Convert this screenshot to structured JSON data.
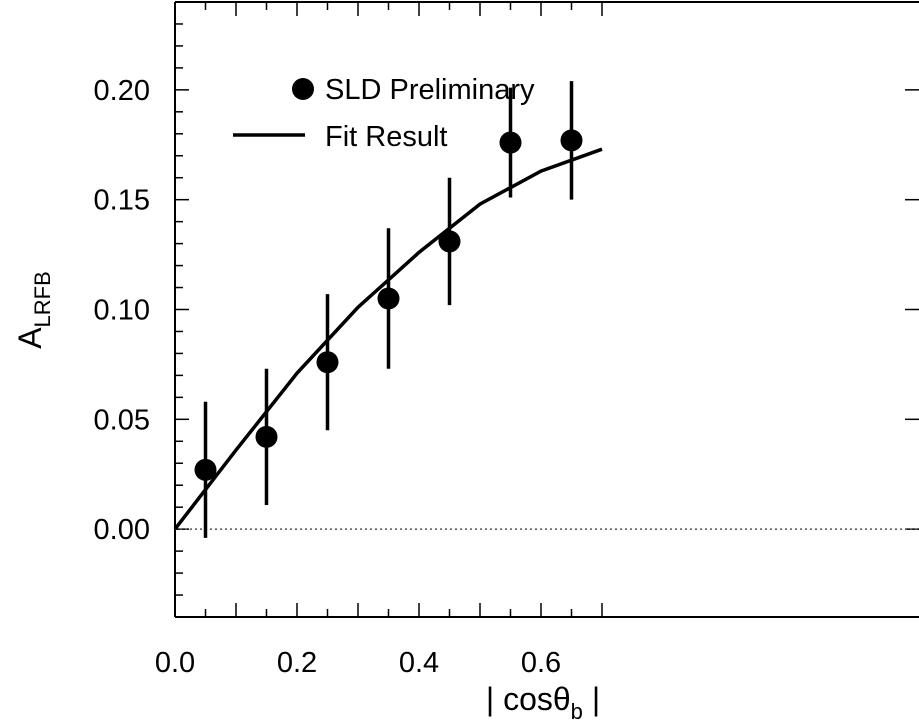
{
  "chart_data": {
    "type": "scatter",
    "title": "",
    "xlabel": {
      "main": "| cosθ",
      "sub": "b",
      "tail": " |"
    },
    "ylabel": {
      "main": "A",
      "sub": "LRFB"
    },
    "xlim": [
      0.0,
      0.7
    ],
    "ylim": [
      -0.04,
      0.24
    ],
    "xticks": [
      "0.0",
      "0.2",
      "0.4",
      "0.6"
    ],
    "yticks": [
      "0.00",
      "0.05",
      "0.10",
      "0.15",
      "0.20"
    ],
    "reference_line": {
      "y": 0.0,
      "style": "dotted"
    },
    "legend": {
      "placement": "top-left",
      "entries": [
        {
          "label": "SLD Preliminary",
          "marker": "filled-circle"
        },
        {
          "label": "Fit Result",
          "marker": "line"
        }
      ]
    },
    "series": [
      {
        "name": "SLD Preliminary",
        "kind": "points-with-errorbars",
        "x": [
          0.05,
          0.15,
          0.25,
          0.35,
          0.45,
          0.55,
          0.65
        ],
        "y": [
          0.027,
          0.042,
          0.076,
          0.105,
          0.131,
          0.176,
          0.177
        ],
        "yerr": [
          0.031,
          0.031,
          0.031,
          0.032,
          0.029,
          0.025,
          0.027
        ]
      },
      {
        "name": "Fit Result",
        "kind": "line",
        "x": [
          0.0,
          0.1,
          0.2,
          0.3,
          0.4,
          0.5,
          0.6,
          0.7
        ],
        "y": [
          0.0,
          0.036,
          0.071,
          0.101,
          0.126,
          0.148,
          0.163,
          0.173
        ]
      }
    ],
    "colors": {
      "data": "#000000",
      "reference_line": "#555555"
    }
  }
}
